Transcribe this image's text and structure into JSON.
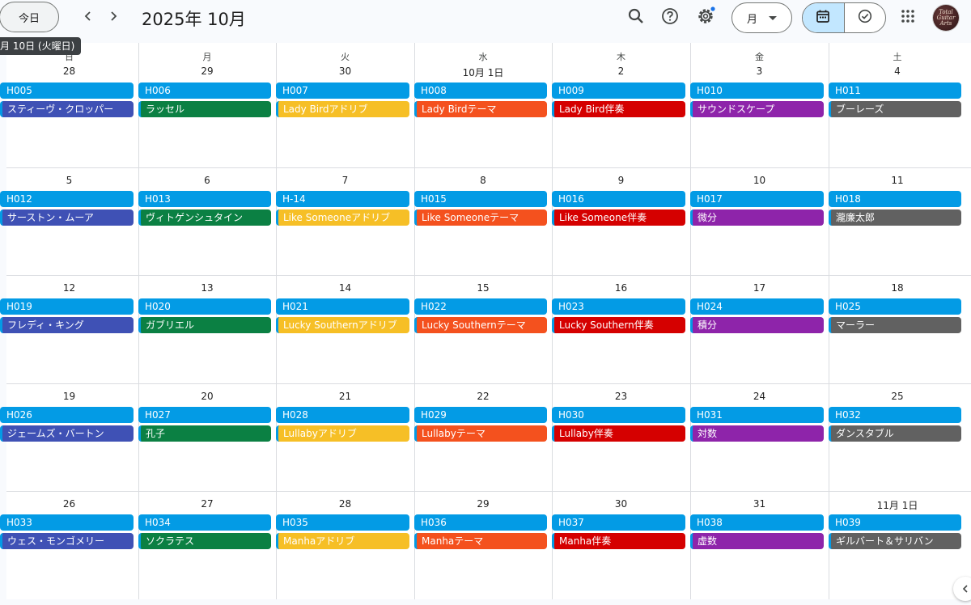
{
  "header": {
    "today_label": "今日",
    "month_title": "2025年 10月",
    "view_label": "月",
    "tooltip": "月 10日 (火曜日)",
    "icons": [
      "chevron-left-icon",
      "chevron-right-icon",
      "search-icon",
      "help-icon",
      "settings-icon",
      "dropdown-icon",
      "calendar-icon",
      "tasks-icon",
      "apps-icon",
      "avatar"
    ],
    "avatar_text": "Total Guitar Arts"
  },
  "colors": {
    "blue": "#039be5",
    "indigo": "#3f51b5",
    "green": "#0b8043",
    "yellow": "#f6bf26",
    "orange": "#f4511e",
    "red": "#d50000",
    "purple": "#8e24aa",
    "gray": "#616161"
  },
  "weekdays": [
    "日",
    "月",
    "火",
    "水",
    "木",
    "金",
    "土"
  ],
  "weeks": [
    {
      "days": [
        {
          "num": "28",
          "code": "H005",
          "event": "スティーヴ・クロッパー",
          "color": "indigo"
        },
        {
          "num": "29",
          "code": "H006",
          "event": "ラッセル",
          "color": "green"
        },
        {
          "num": "30",
          "code": "H007",
          "event": "Lady Birdアドリブ",
          "color": "yellow"
        },
        {
          "num": "10月 1日",
          "code": "H008",
          "event": "Lady Birdテーマ",
          "color": "orange"
        },
        {
          "num": "2",
          "code": "H009",
          "event": "Lady Bird伴奏",
          "color": "red"
        },
        {
          "num": "3",
          "code": "H010",
          "event": "サウンドスケープ",
          "color": "purple"
        },
        {
          "num": "4",
          "code": "H011",
          "event": "ブーレーズ",
          "color": "gray"
        }
      ]
    },
    {
      "days": [
        {
          "num": "5",
          "code": "H012",
          "event": "サーストン・ムーア",
          "color": "indigo"
        },
        {
          "num": "6",
          "code": "H013",
          "event": "ヴィトゲンシュタイン",
          "color": "green"
        },
        {
          "num": "7",
          "code": "H-14",
          "event": "Like Someoneアドリブ",
          "color": "yellow"
        },
        {
          "num": "8",
          "code": "H015",
          "event": "Like Someoneテーマ",
          "color": "orange"
        },
        {
          "num": "9",
          "code": "H016",
          "event": "Like Someone伴奏",
          "color": "red"
        },
        {
          "num": "10",
          "code": "H017",
          "event": "微分",
          "color": "purple"
        },
        {
          "num": "11",
          "code": "H018",
          "event": "瀧廉太郎",
          "color": "gray"
        }
      ]
    },
    {
      "days": [
        {
          "num": "12",
          "code": "H019",
          "event": "フレディ・キング",
          "color": "indigo"
        },
        {
          "num": "13",
          "code": "H020",
          "event": "ガブリエル",
          "color": "green"
        },
        {
          "num": "14",
          "code": "H021",
          "event": "Lucky Southernアドリブ",
          "color": "yellow"
        },
        {
          "num": "15",
          "code": "H022",
          "event": "Lucky Southernテーマ",
          "color": "orange"
        },
        {
          "num": "16",
          "code": "H023",
          "event": "Lucky Southern伴奏",
          "color": "red"
        },
        {
          "num": "17",
          "code": "H024",
          "event": "積分",
          "color": "purple"
        },
        {
          "num": "18",
          "code": "H025",
          "event": "マーラー",
          "color": "gray"
        }
      ]
    },
    {
      "days": [
        {
          "num": "19",
          "code": "H026",
          "event": "ジェームズ・バートン",
          "color": "indigo"
        },
        {
          "num": "20",
          "code": "H027",
          "event": "孔子",
          "color": "green"
        },
        {
          "num": "21",
          "code": "H028",
          "event": "Lullabyアドリブ",
          "color": "yellow"
        },
        {
          "num": "22",
          "code": "H029",
          "event": "Lullabyテーマ",
          "color": "orange"
        },
        {
          "num": "23",
          "code": "H030",
          "event": "Lullaby伴奏",
          "color": "red"
        },
        {
          "num": "24",
          "code": "H031",
          "event": "対数",
          "color": "purple"
        },
        {
          "num": "25",
          "code": "H032",
          "event": "ダンスタブル",
          "color": "gray"
        }
      ]
    },
    {
      "days": [
        {
          "num": "26",
          "code": "H033",
          "event": "ウェス・モンゴメリー",
          "color": "indigo"
        },
        {
          "num": "27",
          "code": "H034",
          "event": "ソクラテス",
          "color": "green"
        },
        {
          "num": "28",
          "code": "H035",
          "event": "Manhaアドリブ",
          "color": "yellow"
        },
        {
          "num": "29",
          "code": "H036",
          "event": "Manhaテーマ",
          "color": "orange"
        },
        {
          "num": "30",
          "code": "H037",
          "event": "Manha伴奏",
          "color": "red"
        },
        {
          "num": "31",
          "code": "H038",
          "event": "虚数",
          "color": "purple"
        },
        {
          "num": "11月 1日",
          "code": "H039",
          "event": "ギルバート＆サリバン",
          "color": "gray"
        }
      ]
    }
  ]
}
